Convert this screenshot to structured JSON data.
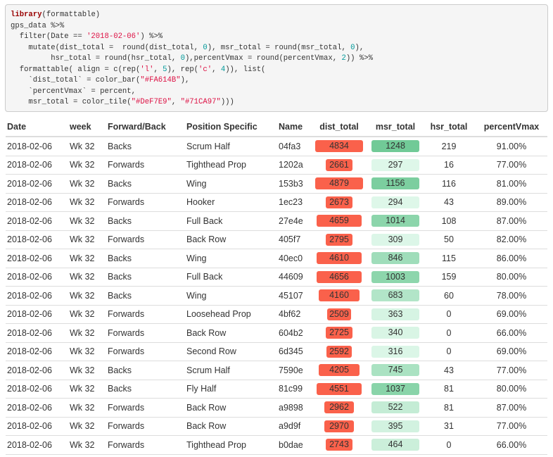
{
  "code": {
    "lines": [
      "library(formattable)",
      "gps_data %>%",
      "  filter(Date == '2018-02-06') %>%",
      "    mutate(dist_total =  round(dist_total, 0), msr_total = round(msr_total, 0),",
      "         hsr_total = round(hsr_total, 0),percentVmax = round(percentVmax, 2)) %>%",
      "  formattable( align = c(rep('l', 5), rep('c', 4)), list(",
      "    `dist_total` = color_bar(\"#FA614B\"),",
      "    `percentVmax` = percent,",
      "    msr_total = color_tile(\"#DeF7E9\", \"#71CA97\")))"
    ]
  },
  "table": {
    "bar_color": "#FA614B",
    "tile_colors": [
      "#DeF7E9",
      "#71CA97"
    ],
    "headers": [
      "Date",
      "week",
      "Forward/Back",
      "Position Specific",
      "Name",
      "dist_total",
      "msr_total",
      "hsr_total",
      "percentVmax"
    ],
    "rows": [
      [
        "2018-02-06",
        "Wk 32",
        "Backs",
        "Scrum Half",
        "04fa3",
        4834,
        1248,
        219,
        "91.00%"
      ],
      [
        "2018-02-06",
        "Wk 32",
        "Forwards",
        "Tighthead Prop",
        "1202a",
        2661,
        297,
        16,
        "77.00%"
      ],
      [
        "2018-02-06",
        "Wk 32",
        "Backs",
        "Wing",
        "153b3",
        4879,
        1156,
        116,
        "81.00%"
      ],
      [
        "2018-02-06",
        "Wk 32",
        "Forwards",
        "Hooker",
        "1ec23",
        2673,
        294,
        43,
        "89.00%"
      ],
      [
        "2018-02-06",
        "Wk 32",
        "Backs",
        "Full Back",
        "27e4e",
        4659,
        1014,
        108,
        "87.00%"
      ],
      [
        "2018-02-06",
        "Wk 32",
        "Forwards",
        "Back Row",
        "405f7",
        2795,
        309,
        50,
        "82.00%"
      ],
      [
        "2018-02-06",
        "Wk 32",
        "Backs",
        "Wing",
        "40ec0",
        4610,
        846,
        115,
        "86.00%"
      ],
      [
        "2018-02-06",
        "Wk 32",
        "Backs",
        "Full Back",
        "44609",
        4656,
        1003,
        159,
        "80.00%"
      ],
      [
        "2018-02-06",
        "Wk 32",
        "Backs",
        "Wing",
        "45107",
        4160,
        683,
        60,
        "78.00%"
      ],
      [
        "2018-02-06",
        "Wk 32",
        "Forwards",
        "Loosehead Prop",
        "4bf62",
        2509,
        363,
        0,
        "69.00%"
      ],
      [
        "2018-02-06",
        "Wk 32",
        "Forwards",
        "Back Row",
        "604b2",
        2725,
        340,
        0,
        "66.00%"
      ],
      [
        "2018-02-06",
        "Wk 32",
        "Forwards",
        "Second Row",
        "6d345",
        2592,
        316,
        0,
        "69.00%"
      ],
      [
        "2018-02-06",
        "Wk 32",
        "Backs",
        "Scrum Half",
        "7590e",
        4205,
        745,
        43,
        "77.00%"
      ],
      [
        "2018-02-06",
        "Wk 32",
        "Backs",
        "Fly Half",
        "81c99",
        4551,
        1037,
        81,
        "80.00%"
      ],
      [
        "2018-02-06",
        "Wk 32",
        "Forwards",
        "Back Row",
        "a9898",
        2962,
        522,
        81,
        "87.00%"
      ],
      [
        "2018-02-06",
        "Wk 32",
        "Forwards",
        "Back Row",
        "a9d9f",
        2970,
        395,
        31,
        "77.00%"
      ],
      [
        "2018-02-06",
        "Wk 32",
        "Forwards",
        "Tighthead Prop",
        "b0dae",
        2743,
        464,
        0,
        "66.00%"
      ]
    ]
  }
}
